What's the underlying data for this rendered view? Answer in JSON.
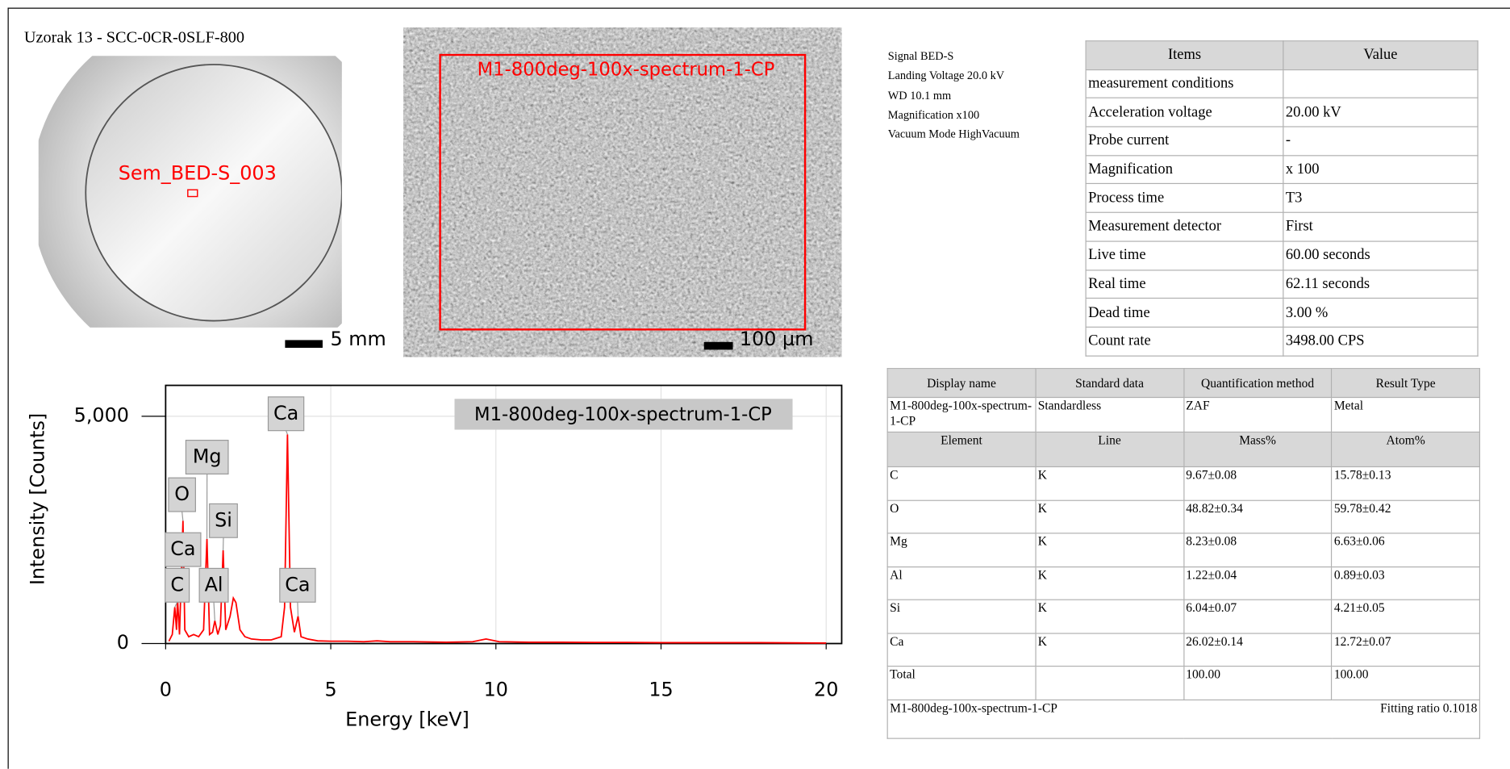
{
  "header": {
    "sample_title": "Uzorak 13 - SCC-0CR-0SLF-800",
    "sem_title": "Sem_BED-S_003"
  },
  "sample_image": {
    "label": "Sem_BED-S_003",
    "scale_bar": "5 mm"
  },
  "sem_image": {
    "label": "M1-800deg-100x-spectrum-1-CP",
    "scale_bar": "100 µm"
  },
  "conditions": [
    "Signal BED-S",
    "Landing Voltage 20.0 kV",
    "WD 10.1 mm",
    "Magnification x100",
    "Vacuum Mode HighVacuum"
  ],
  "measurement_table": {
    "columns": [
      "Items",
      "Value"
    ],
    "rows": [
      [
        "measurement conditions",
        null
      ],
      [
        "Acceleration voltage",
        "20.00 kV"
      ],
      [
        "Probe current",
        "-"
      ],
      [
        "Magnification",
        "x 100"
      ],
      [
        "Process time",
        "T3"
      ],
      [
        "Measurement detector",
        "First"
      ],
      [
        "Live time",
        "60.00 seconds"
      ],
      [
        "Real time",
        "62.11 seconds"
      ],
      [
        "Dead time",
        "3.00 %"
      ],
      [
        "Count rate",
        "3498.00 CPS"
      ]
    ]
  },
  "quant_table": {
    "columns": [
      "Display name",
      "Standard data",
      "Quantification method",
      "Result Type"
    ],
    "rows": [
      [
        "M1-800deg-100x-spectrum-1-CP",
        "Standardless",
        "ZAF",
        "Metal"
      ]
    ],
    "element_columns": [
      "Element",
      "Line",
      "Mass%",
      "Atom%"
    ],
    "element_rows": [
      [
        "C",
        "K",
        "9.67±0.08",
        "15.78±0.13"
      ],
      [
        "O",
        "K",
        "48.82±0.34",
        "59.78±0.42"
      ],
      [
        "Mg",
        "K",
        "8.23±0.08",
        "6.63±0.06"
      ],
      [
        "Al",
        "K",
        "1.22±0.04",
        "0.89±0.03"
      ],
      [
        "Si",
        "K",
        "6.04±0.07",
        "4.21±0.05"
      ],
      [
        "Ca",
        "K",
        "26.02±0.14",
        "12.72±0.07"
      ],
      [
        "Total",
        null,
        "100.00",
        "100.00"
      ]
    ],
    "footer": {
      "name": "M1-800deg-100x-spectrum-1-CP",
      "fitting": "Fitting ratio 0.1018"
    }
  },
  "chart_data": {
    "type": "line",
    "xlabel": "Energy [keV]",
    "ylabel": "Intensity [Counts]",
    "x": [
      0.1,
      0.2,
      0.277,
      0.33,
      0.36,
      0.42,
      0.525,
      0.58,
      0.7,
      0.85,
      1.0,
      1.15,
      1.25,
      1.33,
      1.42,
      1.49,
      1.58,
      1.66,
      1.74,
      1.82,
      1.95,
      2.05,
      2.13,
      2.25,
      2.4,
      2.6,
      2.9,
      3.2,
      3.5,
      3.6,
      3.69,
      3.78,
      3.9,
      4.01,
      4.1,
      4.3,
      4.6,
      5.0,
      5.5,
      6.0,
      6.4,
      6.8,
      7.5,
      8.5,
      9.3,
      9.7,
      10.1,
      11,
      12,
      13,
      14,
      15,
      16,
      17,
      18,
      19,
      20
    ],
    "series": [
      {
        "name": "M1-800deg-100x-spectrum-1-CP",
        "color": "#ff0000",
        "values": [
          50,
          200,
          800,
          300,
          1000,
          200,
          2700,
          300,
          150,
          200,
          150,
          300,
          2300,
          200,
          250,
          500,
          200,
          400,
          2050,
          300,
          600,
          1000,
          900,
          300,
          150,
          100,
          80,
          80,
          150,
          800,
          4600,
          800,
          250,
          600,
          150,
          100,
          60,
          50,
          50,
          40,
          60,
          40,
          40,
          30,
          40,
          100,
          40,
          30,
          30,
          25,
          25,
          20,
          20,
          20,
          20,
          15,
          10
        ]
      }
    ],
    "xlim": [
      0,
      20.47
    ],
    "ylim": [
      0,
      5680
    ],
    "xticks": [
      0,
      5,
      10,
      15,
      20
    ],
    "yticks": [
      0,
      {
        "value": 5000,
        "label": "5,000"
      }
    ],
    "grid": true,
    "annotations": [
      {
        "text": "Ca",
        "x": 3.69
      },
      {
        "text": "Mg",
        "x": 1.25
      },
      {
        "text": "O",
        "x": 0.525
      },
      {
        "text": "Si",
        "x": 1.74
      },
      {
        "text": "Ca",
        "x": 0.36
      },
      {
        "text": "C",
        "x": 0.277
      },
      {
        "text": "Al",
        "x": 1.49
      },
      {
        "text": "Ca",
        "x": 4.01
      }
    ]
  }
}
